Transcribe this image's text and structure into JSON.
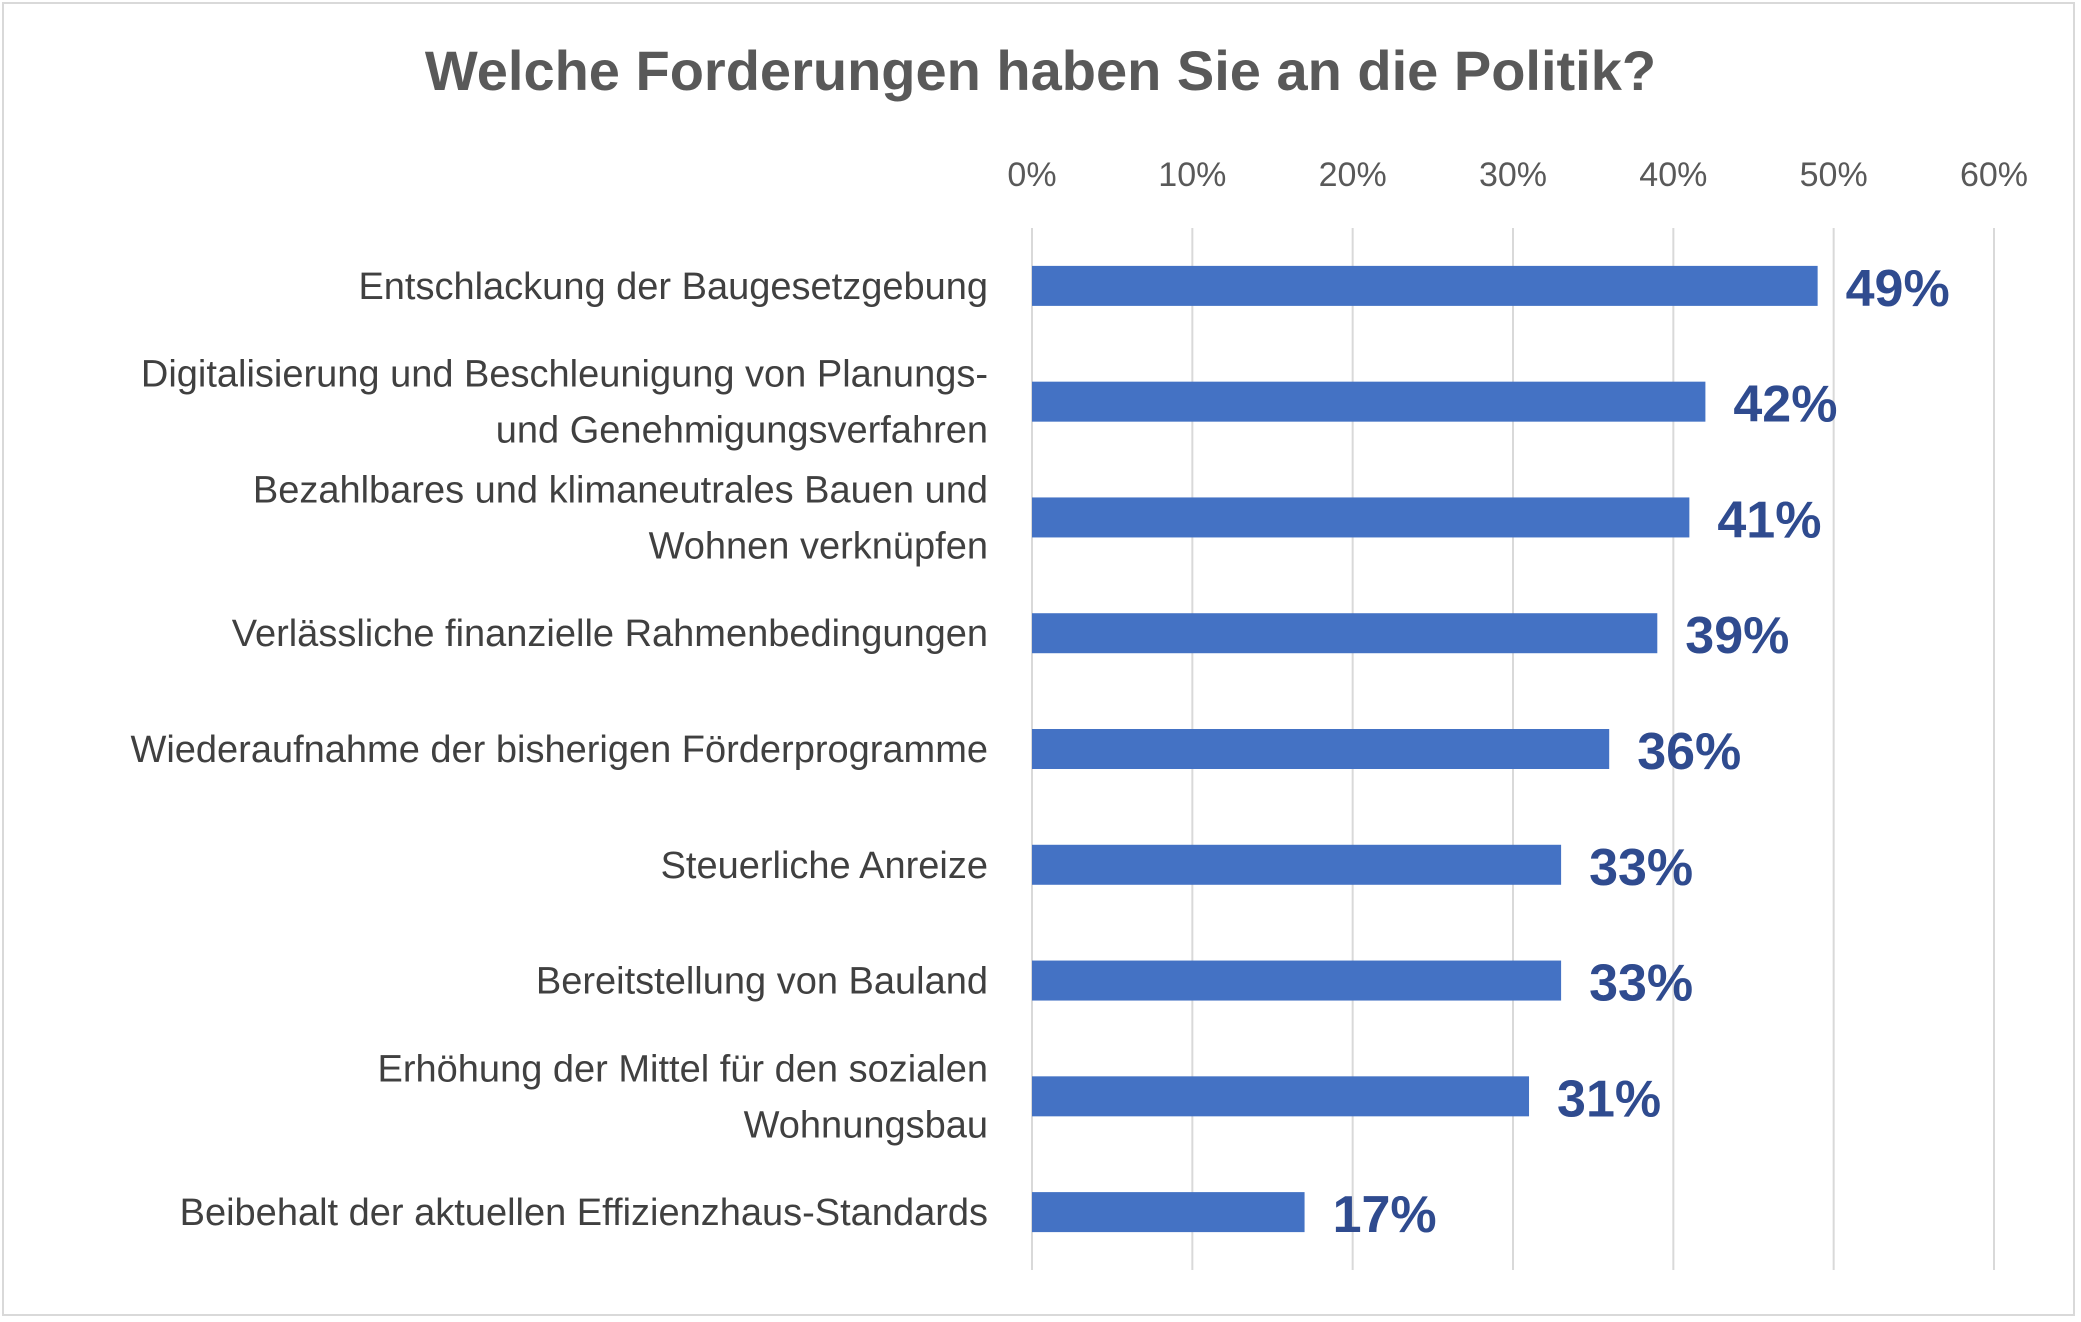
{
  "chart_data": {
    "type": "bar",
    "orientation": "horizontal",
    "title": "Welche Forderungen haben Sie an die Politik?",
    "xlabel": "",
    "ylabel": "",
    "xlim": [
      0,
      60
    ],
    "x_ticks": [
      "0%",
      "10%",
      "20%",
      "30%",
      "40%",
      "50%",
      "60%"
    ],
    "x_tick_values": [
      0,
      10,
      20,
      30,
      40,
      50,
      60
    ],
    "axis_position": "top",
    "grid": true,
    "categories": [
      [
        "Entschlackung der Baugesetzgebung"
      ],
      [
        "Digitalisierung und Beschleunigung von Planungs-",
        "und Genehmigungsverfahren"
      ],
      [
        "Bezahlbares und klimaneutrales Bauen und",
        "Wohnen verknüpfen"
      ],
      [
        "Verlässliche finanzielle Rahmenbedingungen"
      ],
      [
        "Wiederaufnahme der bisherigen Förderprogramme"
      ],
      [
        "Steuerliche Anreize"
      ],
      [
        "Bereitstellung von Bauland"
      ],
      [
        "Erhöhung der Mittel für den sozialen",
        "Wohnungsbau"
      ],
      [
        "Beibehalt der aktuellen Effizienzhaus-Standards"
      ]
    ],
    "values": [
      49,
      42,
      41,
      39,
      36,
      33,
      33,
      31,
      17
    ],
    "data_labels": [
      "49%",
      "42%",
      "41%",
      "39%",
      "36%",
      "33%",
      "33%",
      "31%",
      "17%"
    ],
    "colors": {
      "bar": "#4472c4",
      "data_label": "#2f4b8f",
      "grid": "#d9d9d9",
      "text": "#595959"
    }
  }
}
